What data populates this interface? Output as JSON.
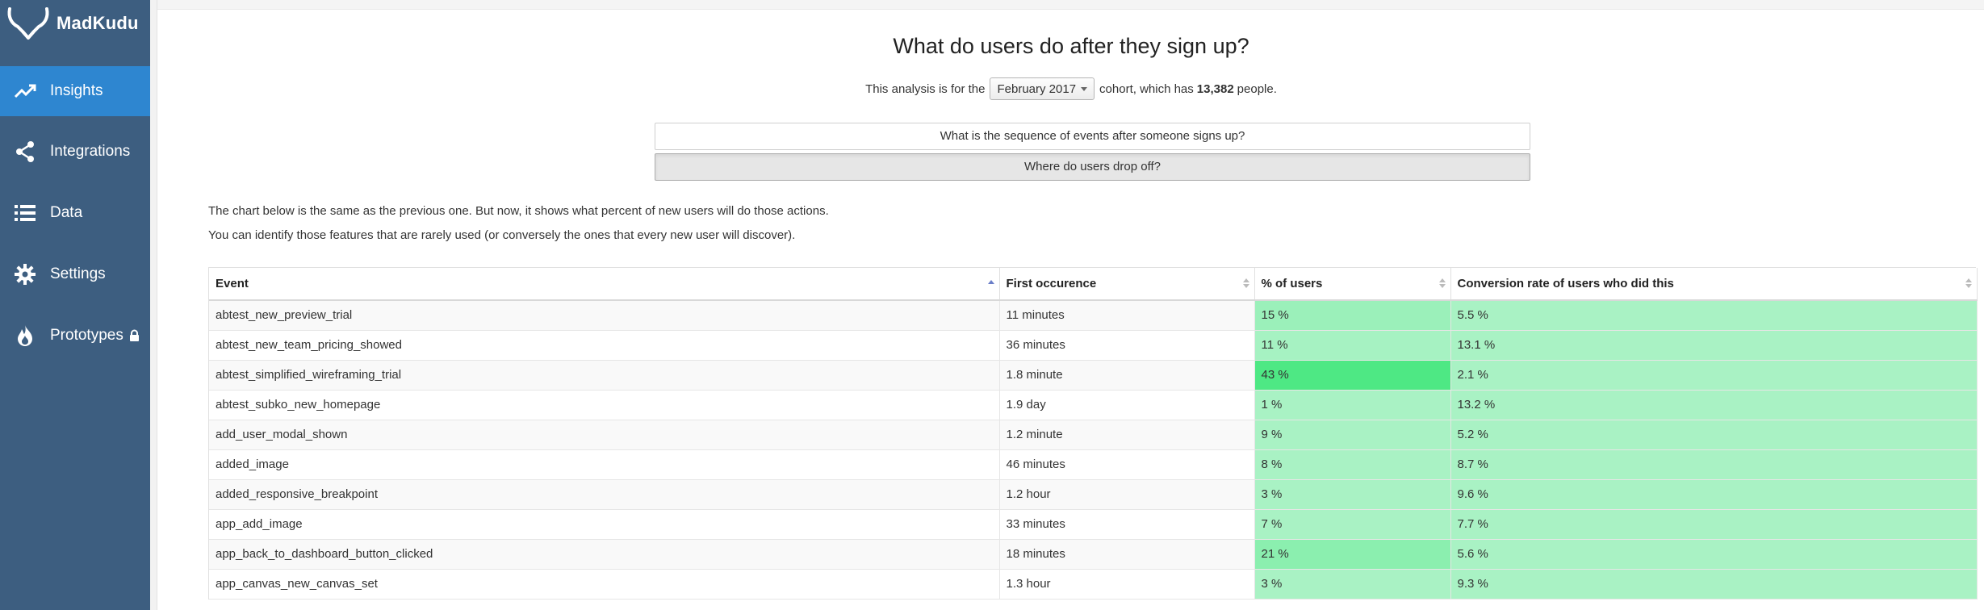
{
  "brand": {
    "name": "MadKudu"
  },
  "sidebar": {
    "items": [
      {
        "label": "Insights",
        "icon": "trending-up-icon",
        "active": true
      },
      {
        "label": "Integrations",
        "icon": "share-icon",
        "active": false
      },
      {
        "label": "Data",
        "icon": "list-icon",
        "active": false
      },
      {
        "label": "Settings",
        "icon": "gear-icon",
        "active": false
      },
      {
        "label": "Prototypes",
        "icon": "flame-icon",
        "active": false,
        "locked": true
      }
    ]
  },
  "page": {
    "title": "What do users do after they sign up?",
    "cohort_prefix": "This analysis is for the",
    "cohort_value": "February 2017",
    "cohort_mid": "cohort, which has",
    "cohort_count": "13,382",
    "cohort_suffix": "people."
  },
  "toggles": {
    "sequence_label": "What is the sequence of events after someone signs up?",
    "dropoff_label": "Where do users drop off?"
  },
  "description": {
    "line1": "The chart below is the same as the previous one. But now, it shows what percent of new users will do those actions.",
    "line2": "You can identify those features that are rarely used (or conversely the ones that every new user will discover)."
  },
  "colors": {
    "sidebar_bg": "#3d5e80",
    "active_nav": "#2e86d0",
    "heat_low": "#a9f2c4",
    "heat_high": "#4ee884"
  },
  "table": {
    "headers": [
      "Event",
      "First occurence",
      "% of users",
      "Conversion rate of users who did this"
    ],
    "rows": [
      {
        "event": "abtest_new_preview_trial",
        "first": "11 minutes",
        "pct": "15 %",
        "pct_value": 15,
        "conv": "5.5 %"
      },
      {
        "event": "abtest_new_team_pricing_showed",
        "first": "36 minutes",
        "pct": "11 %",
        "pct_value": 11,
        "conv": "13.1 %"
      },
      {
        "event": "abtest_simplified_wireframing_trial",
        "first": "1.8 minute",
        "pct": "43 %",
        "pct_value": 43,
        "conv": "2.1 %"
      },
      {
        "event": "abtest_subko_new_homepage",
        "first": "1.9 day",
        "pct": "1 %",
        "pct_value": 1,
        "conv": "13.2 %"
      },
      {
        "event": "add_user_modal_shown",
        "first": "1.2 minute",
        "pct": "9 %",
        "pct_value": 9,
        "conv": "5.2 %"
      },
      {
        "event": "added_image",
        "first": "46 minutes",
        "pct": "8 %",
        "pct_value": 8,
        "conv": "8.7 %"
      },
      {
        "event": "added_responsive_breakpoint",
        "first": "1.2 hour",
        "pct": "3 %",
        "pct_value": 3,
        "conv": "9.6 %"
      },
      {
        "event": "app_add_image",
        "first": "33 minutes",
        "pct": "7 %",
        "pct_value": 7,
        "conv": "7.7 %"
      },
      {
        "event": "app_back_to_dashboard_button_clicked",
        "first": "18 minutes",
        "pct": "21 %",
        "pct_value": 21,
        "conv": "5.6 %"
      },
      {
        "event": "app_canvas_new_canvas_set",
        "first": "1.3 hour",
        "pct": "3 %",
        "pct_value": 3,
        "conv": "9.3 %"
      }
    ]
  }
}
